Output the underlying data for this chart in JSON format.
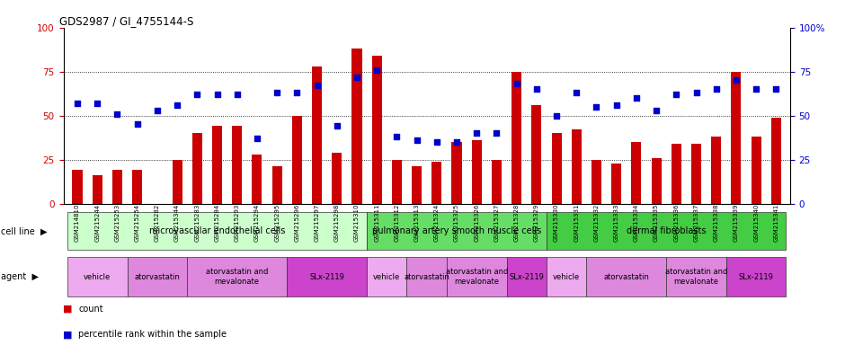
{
  "title": "GDS2987 / GI_4755144-S",
  "samples": [
    "GSM214810",
    "GSM215244",
    "GSM215253",
    "GSM215254",
    "GSM215282",
    "GSM215344",
    "GSM215283",
    "GSM215284",
    "GSM215293",
    "GSM215294",
    "GSM215295",
    "GSM215296",
    "GSM215297",
    "GSM215298",
    "GSM215310",
    "GSM215311",
    "GSM215312",
    "GSM215313",
    "GSM215324",
    "GSM215325",
    "GSM215326",
    "GSM215327",
    "GSM215328",
    "GSM215329",
    "GSM215330",
    "GSM215331",
    "GSM215332",
    "GSM215333",
    "GSM215334",
    "GSM215335",
    "GSM215336",
    "GSM215337",
    "GSM215338",
    "GSM215339",
    "GSM215340",
    "GSM215341"
  ],
  "counts": [
    19,
    16,
    19,
    19,
    0,
    25,
    40,
    44,
    44,
    28,
    21,
    50,
    78,
    29,
    88,
    84,
    25,
    21,
    24,
    35,
    36,
    25,
    75,
    56,
    40,
    42,
    25,
    23,
    35,
    26,
    34,
    34,
    38,
    75,
    38,
    49
  ],
  "percentiles": [
    57,
    57,
    51,
    45,
    53,
    56,
    62,
    62,
    62,
    37,
    63,
    63,
    67,
    44,
    72,
    76,
    38,
    36,
    35,
    35,
    40,
    40,
    68,
    65,
    50,
    63,
    55,
    56,
    60,
    53,
    62,
    63,
    65,
    70,
    65,
    65
  ],
  "bar_color": "#cc0000",
  "dot_color": "#0000cc",
  "ylim": [
    0,
    100
  ],
  "yticks": [
    0,
    25,
    50,
    75,
    100
  ],
  "grid_lines": [
    25,
    50,
    75
  ],
  "cell_line_defs": [
    {
      "label": "microvascular endothelial cells",
      "start": 0,
      "end": 15,
      "color": "#ccffcc"
    },
    {
      "label": "pulmonary artery smooth muscle cells",
      "start": 15,
      "end": 24,
      "color": "#66dd66"
    },
    {
      "label": "dermal fibroblasts",
      "start": 24,
      "end": 36,
      "color": "#44cc44"
    }
  ],
  "agent_defs": [
    {
      "label": "vehicle",
      "start": 0,
      "end": 3,
      "color": "#eeaaee"
    },
    {
      "label": "atorvastatin",
      "start": 3,
      "end": 6,
      "color": "#dd88dd"
    },
    {
      "label": "atorvastatin and\nmevalonate",
      "start": 6,
      "end": 11,
      "color": "#dd88dd"
    },
    {
      "label": "SLx-2119",
      "start": 11,
      "end": 15,
      "color": "#cc44cc"
    },
    {
      "label": "vehicle",
      "start": 15,
      "end": 17,
      "color": "#eeaaee"
    },
    {
      "label": "atorvastatin",
      "start": 17,
      "end": 19,
      "color": "#dd88dd"
    },
    {
      "label": "atorvastatin and\nmevalonate",
      "start": 19,
      "end": 22,
      "color": "#dd88dd"
    },
    {
      "label": "SLx-2119",
      "start": 22,
      "end": 24,
      "color": "#cc44cc"
    },
    {
      "label": "vehicle",
      "start": 24,
      "end": 26,
      "color": "#eeaaee"
    },
    {
      "label": "atorvastatin",
      "start": 26,
      "end": 30,
      "color": "#dd88dd"
    },
    {
      "label": "atorvastatin and\nmevalonate",
      "start": 30,
      "end": 33,
      "color": "#dd88dd"
    },
    {
      "label": "SLx-2119",
      "start": 33,
      "end": 36,
      "color": "#cc44cc"
    }
  ],
  "left_ytick_color": "#cc0000",
  "right_ytick_color": "#0000cc",
  "right_ytick_labels": [
    "0",
    "25",
    "50",
    "75",
    "100%"
  ]
}
